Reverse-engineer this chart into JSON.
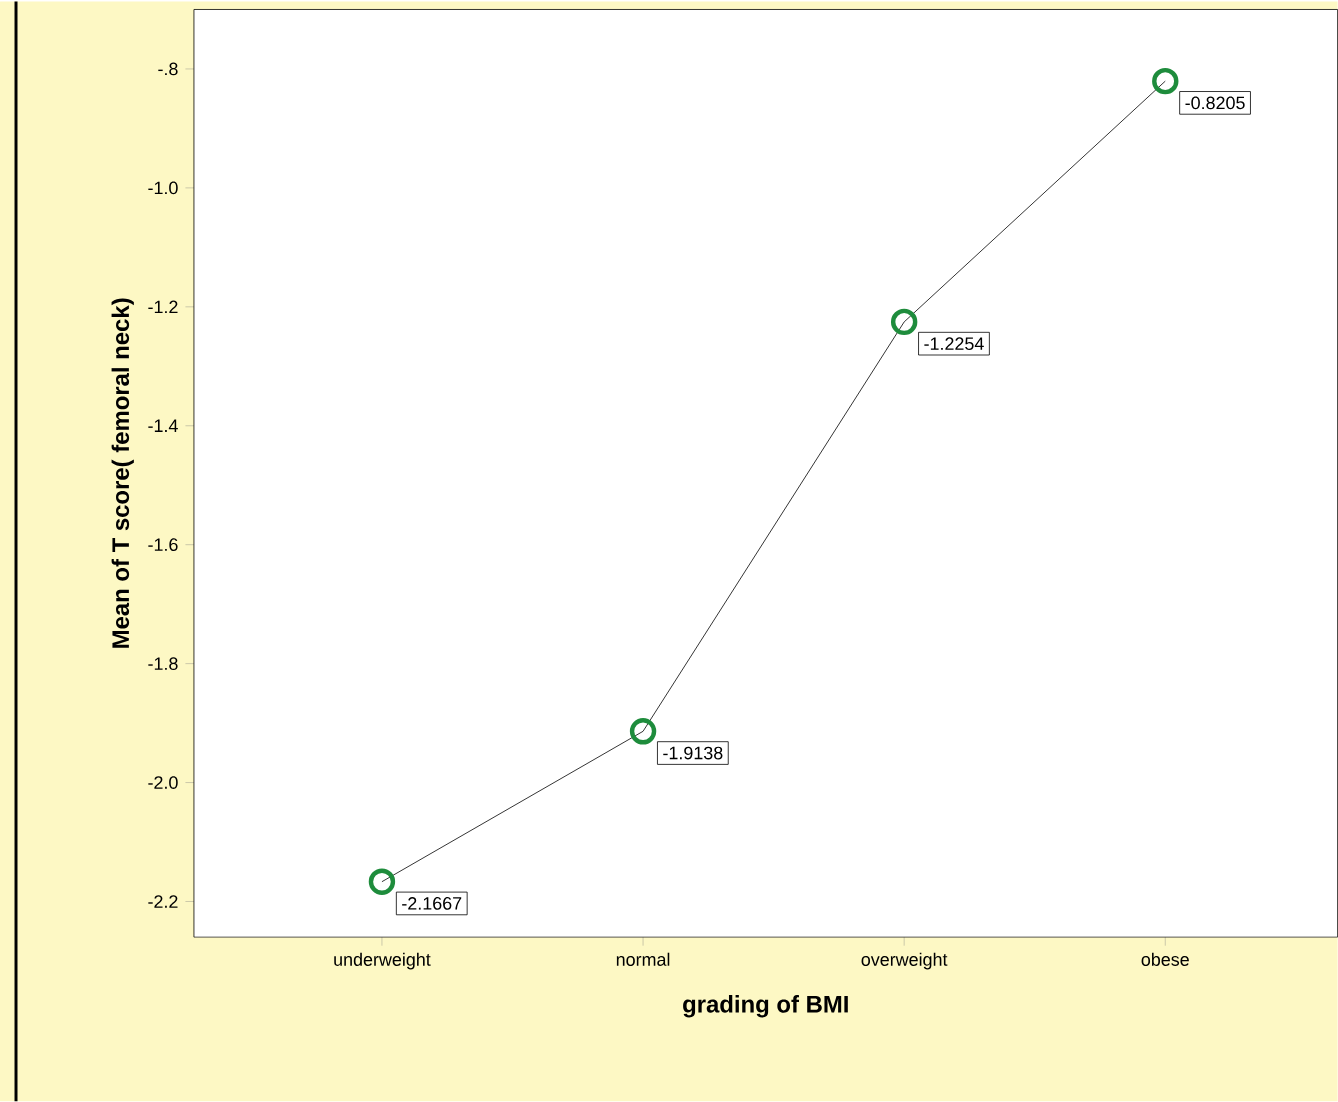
{
  "chart_data": {
    "type": "line",
    "xlabel": "grading of BMI",
    "ylabel": "Mean of T score( femoral neck)",
    "categories": [
      "underweight",
      "normal",
      "overweight",
      "obese"
    ],
    "series": [
      {
        "color": "#1e8c3c",
        "values": [
          -2.1667,
          -1.9138,
          -1.2254,
          -0.8205
        ]
      }
    ],
    "ylim": [
      -2.26,
      -0.7
    ],
    "yticks": [
      {
        "value": -2.2,
        "label": "-2.2"
      },
      {
        "value": -2.0,
        "label": "-2.0"
      },
      {
        "value": -1.8,
        "label": "-1.8"
      },
      {
        "value": -1.6,
        "label": "-1.6"
      },
      {
        "value": -1.4,
        "label": "-1.4"
      },
      {
        "value": -1.2,
        "label": "-1.2"
      },
      {
        "value": -1.0,
        "label": "-1.0"
      },
      {
        "value": -0.8,
        "label": "-.8"
      }
    ],
    "data_labels": true,
    "marker": "circle",
    "line_style": "solid"
  }
}
